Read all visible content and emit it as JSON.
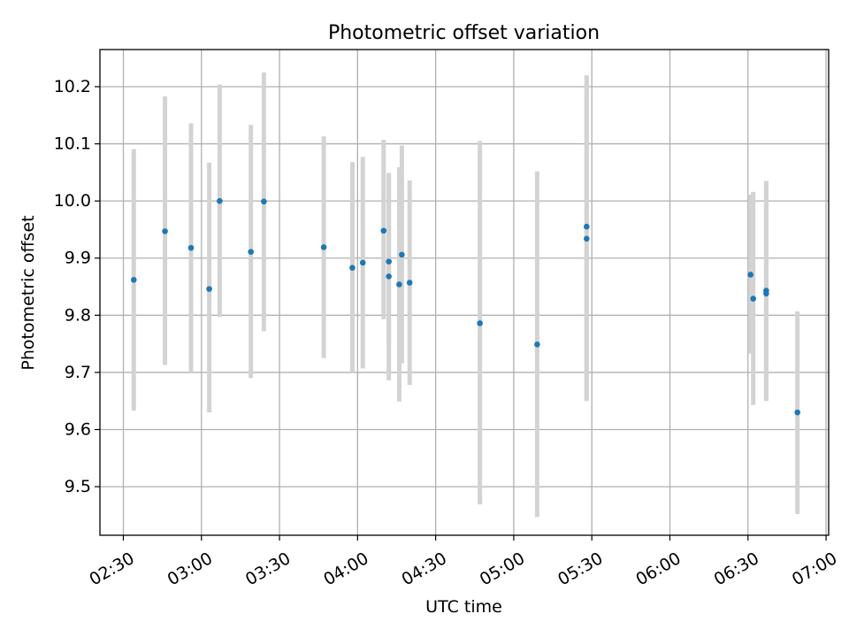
{
  "chart_data": {
    "type": "scatter",
    "title": "Photometric offset variation",
    "xlabel": "UTC time",
    "ylabel": "Photometric offset",
    "xlim": [
      "02:21",
      "07:01"
    ],
    "ylim": [
      9.415,
      10.265
    ],
    "x_ticks": [
      "02:30",
      "03:00",
      "03:30",
      "04:00",
      "04:30",
      "05:00",
      "05:30",
      "06:00",
      "06:30",
      "07:00"
    ],
    "y_ticks": [
      "9.5",
      "9.6",
      "9.7",
      "9.8",
      "9.9",
      "10.0",
      "10.1",
      "10.2"
    ],
    "grid": true,
    "point_color": "#1f77b4",
    "errorbar_color": "#d3d3d3",
    "points": [
      {
        "t": "02:34",
        "y": 9.862,
        "lo": 9.633,
        "hi": 10.091
      },
      {
        "t": "02:46",
        "y": 9.947,
        "lo": 9.713,
        "hi": 10.183
      },
      {
        "t": "02:56",
        "y": 9.918,
        "lo": 9.7,
        "hi": 10.136
      },
      {
        "t": "03:03",
        "y": 9.846,
        "lo": 9.63,
        "hi": 10.067
      },
      {
        "t": "03:07",
        "y": 10.0,
        "lo": 9.797,
        "hi": 10.204
      },
      {
        "t": "03:19",
        "y": 9.911,
        "lo": 9.69,
        "hi": 10.133
      },
      {
        "t": "03:24",
        "y": 9.999,
        "lo": 9.772,
        "hi": 10.225
      },
      {
        "t": "03:47",
        "y": 9.919,
        "lo": 9.725,
        "hi": 10.113
      },
      {
        "t": "03:58",
        "y": 9.883,
        "lo": 9.7,
        "hi": 10.068
      },
      {
        "t": "04:02",
        "y": 9.892,
        "lo": 9.707,
        "hi": 10.077
      },
      {
        "t": "04:10",
        "y": 9.948,
        "lo": 9.793,
        "hi": 10.107
      },
      {
        "t": "04:12",
        "y": 9.894,
        "lo": 9.748,
        "hi": 10.043
      },
      {
        "t": "04:12",
        "y": 9.868,
        "lo": 9.686,
        "hi": 10.049
      },
      {
        "t": "04:16",
        "y": 9.854,
        "lo": 9.649,
        "hi": 10.059
      },
      {
        "t": "04:17",
        "y": 9.906,
        "lo": 9.716,
        "hi": 10.097
      },
      {
        "t": "04:20",
        "y": 9.857,
        "lo": 9.678,
        "hi": 10.036
      },
      {
        "t": "04:47",
        "y": 9.786,
        "lo": 9.469,
        "hi": 10.105
      },
      {
        "t": "05:09",
        "y": 9.749,
        "lo": 9.447,
        "hi": 10.052
      },
      {
        "t": "05:28",
        "y": 9.955,
        "lo": 9.65,
        "hi": 10.22
      },
      {
        "t": "05:28",
        "y": 9.934,
        "lo": 9.651,
        "hi": 10.219
      },
      {
        "t": "06:31",
        "y": 9.871,
        "lo": 9.733,
        "hi": 10.011
      },
      {
        "t": "06:32",
        "y": 9.829,
        "lo": 9.643,
        "hi": 10.016
      },
      {
        "t": "06:37",
        "y": 9.843,
        "lo": 9.651,
        "hi": 10.035
      },
      {
        "t": "06:37",
        "y": 9.838,
        "lo": 9.65,
        "hi": 10.027
      },
      {
        "t": "06:49",
        "y": 9.63,
        "lo": 9.452,
        "hi": 9.807
      }
    ]
  }
}
